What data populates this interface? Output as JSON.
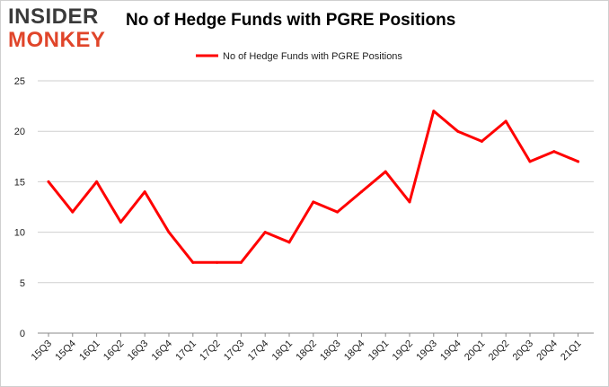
{
  "logo": {
    "line1": "INSIDER",
    "line2": "MONKEY"
  },
  "title": "No of Hedge Funds with PGRE Positions",
  "chart_data": {
    "type": "line",
    "title": "No of Hedge Funds with PGRE Positions",
    "categories": [
      "15Q3",
      "15Q4",
      "16Q1",
      "16Q2",
      "16Q3",
      "16Q4",
      "17Q1",
      "17Q2",
      "17Q3",
      "17Q4",
      "18Q1",
      "18Q2",
      "18Q3",
      "18Q4",
      "19Q1",
      "19Q2",
      "19Q3",
      "19Q4",
      "20Q1",
      "20Q2",
      "20Q3",
      "20Q4",
      "21Q1"
    ],
    "series": [
      {
        "name": "No of Hedge Funds with PGRE Positions",
        "color": "#ff0000",
        "values": [
          15,
          12,
          15,
          11,
          14,
          10,
          7,
          7,
          7,
          10,
          9,
          13,
          12,
          14,
          16,
          13,
          22,
          20,
          19,
          21,
          17,
          18,
          17
        ]
      }
    ],
    "ylim": [
      0,
      25
    ],
    "yticks": [
      "0",
      "5",
      "10",
      "15",
      "20",
      "25"
    ],
    "grid": true,
    "legend": "top-center"
  }
}
